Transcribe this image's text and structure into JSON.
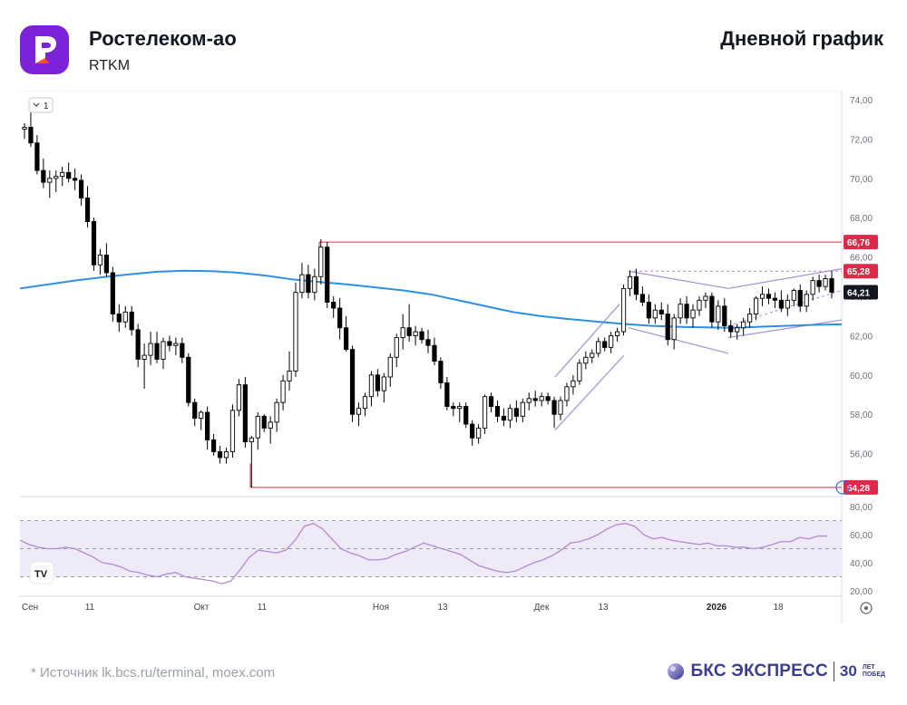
{
  "header": {
    "name": "Ростелеком-ао",
    "code": "RTKM",
    "timeframe": "Дневной график"
  },
  "footer": {
    "source": "*  Источник lk.bcs.ru/terminal, moex.com",
    "brand": "БКС ЭКСПРЕСС",
    "brand_30": "30",
    "brand_small_1": "ЛЕТ",
    "brand_small_2": "ПОБЕД"
  },
  "colors": {
    "up_candle": "#ffffff",
    "down_candle": "#000000",
    "ma_line": "#2f8fe5",
    "level_line": "#e0284a",
    "channel": "#a48ed6",
    "rsi_line": "#b38ad6",
    "rsi_band": "#efeaf8",
    "brand": "#3b3e8c"
  },
  "chart_data": {
    "type": "candlestick",
    "scale_note": "1",
    "y_axis": {
      "min": 52,
      "max": 75,
      "ticks": [
        "74,00",
        "72,00",
        "70,00",
        "68,00",
        "66,00",
        "64,00",
        "62,00",
        "60,00",
        "58,00",
        "56,00"
      ]
    },
    "x_labels": [
      "Сен",
      "11",
      "Окт",
      "11",
      "Ноя",
      "13",
      "Дек",
      "13",
      "2026",
      "18"
    ],
    "price_labels": [
      {
        "value": 66.76,
        "text": "66,76",
        "style": "red"
      },
      {
        "value": 65.28,
        "text": "65,28",
        "style": "red"
      },
      {
        "value": 64.21,
        "text": "64,21",
        "style": "black"
      },
      {
        "value": 54.28,
        "text": "54,28",
        "style": "red"
      }
    ],
    "horizontal_levels": [
      66.76,
      54.28
    ],
    "ohlc": [
      [
        72.5,
        72.8,
        72.0,
        72.6
      ],
      [
        72.6,
        73.4,
        71.6,
        71.8
      ],
      [
        71.8,
        72.2,
        70.2,
        70.4
      ],
      [
        70.4,
        71.0,
        69.5,
        69.8
      ],
      [
        69.8,
        70.4,
        69.0,
        70.0
      ],
      [
        70.0,
        70.4,
        69.3,
        70.1
      ],
      [
        70.1,
        70.6,
        69.6,
        70.3
      ],
      [
        70.3,
        70.8,
        69.8,
        70.0
      ],
      [
        70.0,
        70.5,
        69.4,
        69.9
      ],
      [
        69.9,
        70.2,
        68.6,
        69.0
      ],
      [
        69.0,
        69.6,
        67.5,
        67.8
      ],
      [
        67.8,
        68.0,
        65.3,
        65.6
      ],
      [
        65.6,
        66.4,
        65.1,
        66.1
      ],
      [
        66.1,
        66.7,
        65.0,
        65.2
      ],
      [
        65.2,
        65.5,
        62.7,
        63.1
      ],
      [
        63.1,
        63.6,
        62.2,
        62.7
      ],
      [
        62.7,
        63.5,
        62.4,
        63.2
      ],
      [
        63.2,
        63.5,
        62.0,
        62.3
      ],
      [
        62.3,
        62.6,
        60.4,
        60.8
      ],
      [
        60.8,
        61.6,
        59.3,
        61.0
      ],
      [
        61.0,
        62.2,
        60.5,
        61.6
      ],
      [
        61.6,
        62.2,
        60.6,
        60.8
      ],
      [
        60.8,
        61.9,
        60.3,
        61.7
      ],
      [
        61.7,
        62.0,
        61.2,
        61.5
      ],
      [
        61.5,
        61.9,
        61.0,
        61.6
      ],
      [
        61.6,
        61.9,
        60.6,
        60.9
      ],
      [
        60.9,
        61.1,
        58.4,
        58.6
      ],
      [
        58.6,
        58.8,
        57.4,
        57.8
      ],
      [
        57.8,
        58.2,
        57.2,
        58.1
      ],
      [
        58.1,
        58.4,
        56.2,
        56.7
      ],
      [
        56.7,
        57.0,
        55.9,
        56.1
      ],
      [
        56.1,
        56.4,
        55.5,
        55.8
      ],
      [
        55.8,
        56.3,
        55.5,
        56.1
      ],
      [
        56.1,
        58.5,
        55.8,
        58.2
      ],
      [
        58.2,
        59.8,
        57.9,
        59.5
      ],
      [
        59.5,
        59.9,
        56.3,
        56.6
      ],
      [
        56.6,
        56.9,
        54.28,
        56.8
      ],
      [
        56.8,
        58.1,
        56.2,
        57.9
      ],
      [
        57.9,
        58.0,
        57.1,
        57.3
      ],
      [
        57.3,
        57.9,
        56.5,
        57.6
      ],
      [
        57.6,
        58.8,
        57.1,
        58.6
      ],
      [
        58.6,
        60.0,
        58.2,
        59.7
      ],
      [
        59.7,
        61.2,
        59.2,
        60.2
      ],
      [
        60.2,
        64.7,
        59.9,
        64.2
      ],
      [
        64.2,
        65.7,
        63.9,
        65.1
      ],
      [
        65.1,
        65.6,
        63.9,
        64.2
      ],
      [
        64.2,
        65.4,
        63.8,
        65.0
      ],
      [
        65.0,
        66.9,
        64.6,
        66.5
      ],
      [
        66.5,
        66.76,
        63.4,
        63.7
      ],
      [
        63.7,
        64.0,
        62.9,
        63.4
      ],
      [
        63.4,
        63.9,
        61.8,
        62.4
      ],
      [
        62.4,
        63.0,
        61.2,
        61.3
      ],
      [
        61.3,
        61.5,
        57.6,
        58.0
      ],
      [
        58.0,
        58.6,
        57.4,
        58.3
      ],
      [
        58.3,
        59.1,
        57.9,
        58.9
      ],
      [
        58.9,
        60.2,
        58.4,
        60.0
      ],
      [
        60.0,
        60.3,
        58.9,
        59.2
      ],
      [
        59.2,
        60.1,
        58.6,
        59.9
      ],
      [
        59.9,
        61.1,
        59.4,
        60.9
      ],
      [
        60.9,
        62.1,
        60.4,
        61.9
      ],
      [
        61.9,
        63.1,
        61.3,
        62.4
      ],
      [
        62.4,
        63.6,
        61.7,
        62.0
      ],
      [
        62.0,
        62.5,
        61.5,
        62.2
      ],
      [
        62.2,
        62.4,
        61.6,
        61.8
      ],
      [
        61.8,
        62.3,
        61.1,
        61.5
      ],
      [
        61.5,
        61.9,
        60.5,
        60.7
      ],
      [
        60.7,
        60.9,
        59.3,
        59.6
      ],
      [
        59.6,
        59.9,
        58.2,
        58.4
      ],
      [
        58.4,
        58.6,
        57.9,
        58.3
      ],
      [
        58.3,
        58.6,
        57.6,
        58.4
      ],
      [
        58.4,
        58.6,
        57.3,
        57.5
      ],
      [
        57.5,
        57.7,
        56.4,
        56.8
      ],
      [
        56.8,
        57.5,
        56.5,
        57.3
      ],
      [
        57.3,
        59.0,
        57.0,
        58.9
      ],
      [
        58.9,
        59.1,
        58.1,
        58.4
      ],
      [
        58.4,
        58.7,
        57.6,
        57.9
      ],
      [
        57.9,
        58.3,
        57.4,
        57.7
      ],
      [
        57.7,
        58.5,
        57.3,
        58.3
      ],
      [
        58.3,
        58.7,
        57.6,
        57.9
      ],
      [
        57.9,
        58.8,
        57.6,
        58.6
      ],
      [
        58.6,
        59.1,
        58.2,
        58.8
      ],
      [
        58.8,
        59.2,
        58.4,
        58.7
      ],
      [
        58.7,
        59.1,
        58.4,
        58.9
      ],
      [
        58.9,
        59.1,
        58.5,
        58.7
      ],
      [
        58.7,
        58.9,
        57.3,
        58.0
      ],
      [
        58.0,
        58.9,
        57.7,
        58.7
      ],
      [
        58.7,
        59.6,
        58.4,
        59.4
      ],
      [
        59.4,
        60.0,
        59.0,
        59.7
      ],
      [
        59.7,
        60.8,
        59.5,
        60.6
      ],
      [
        60.6,
        61.2,
        60.3,
        60.9
      ],
      [
        60.9,
        61.3,
        60.6,
        61.1
      ],
      [
        61.1,
        61.9,
        60.9,
        61.7
      ],
      [
        61.7,
        61.9,
        61.2,
        61.4
      ],
      [
        61.4,
        62.2,
        61.1,
        62.0
      ],
      [
        62.0,
        62.4,
        61.7,
        62.2
      ],
      [
        62.2,
        64.6,
        62.0,
        64.4
      ],
      [
        64.4,
        65.3,
        64.0,
        65.0
      ],
      [
        65.0,
        65.4,
        63.8,
        64.1
      ],
      [
        64.1,
        64.5,
        63.5,
        63.7
      ],
      [
        63.7,
        64.1,
        62.6,
        62.9
      ],
      [
        62.9,
        63.6,
        62.6,
        63.3
      ],
      [
        63.3,
        63.7,
        62.8,
        63.1
      ],
      [
        63.1,
        63.6,
        61.5,
        61.8
      ],
      [
        61.8,
        63.1,
        61.3,
        62.9
      ],
      [
        62.9,
        63.9,
        62.6,
        63.6
      ],
      [
        63.6,
        64.0,
        62.6,
        62.9
      ],
      [
        62.9,
        63.6,
        62.4,
        63.3
      ],
      [
        63.3,
        64.0,
        63.0,
        63.8
      ],
      [
        63.8,
        64.2,
        63.4,
        64.0
      ],
      [
        64.0,
        64.2,
        62.4,
        62.7
      ],
      [
        62.7,
        63.8,
        62.3,
        63.5
      ],
      [
        63.5,
        63.9,
        62.2,
        62.5
      ],
      [
        62.5,
        62.8,
        61.9,
        62.2
      ],
      [
        62.2,
        62.6,
        61.8,
        62.4
      ],
      [
        62.4,
        62.9,
        62.0,
        62.7
      ],
      [
        62.7,
        63.4,
        62.4,
        63.1
      ],
      [
        63.1,
        64.0,
        62.8,
        63.9
      ],
      [
        63.9,
        64.5,
        63.5,
        64.1
      ],
      [
        64.1,
        64.4,
        63.6,
        63.9
      ],
      [
        63.9,
        64.2,
        63.4,
        63.8
      ],
      [
        63.8,
        64.3,
        63.2,
        63.4
      ],
      [
        63.4,
        64.1,
        63.0,
        63.8
      ],
      [
        63.8,
        64.4,
        63.5,
        64.3
      ],
      [
        64.3,
        64.6,
        63.2,
        63.5
      ],
      [
        63.5,
        64.3,
        63.2,
        64.1
      ],
      [
        64.1,
        65.0,
        63.8,
        64.8
      ],
      [
        64.8,
        65.1,
        64.2,
        64.5
      ],
      [
        64.5,
        65.1,
        64.3,
        64.9
      ],
      [
        64.9,
        65.28,
        63.9,
        64.21
      ]
    ],
    "ma": [
      64.4,
      64.6,
      64.8,
      64.97,
      65.12,
      65.25,
      65.3,
      65.28,
      65.2,
      65.05,
      64.85,
      64.72,
      64.6,
      64.45,
      64.3,
      64.1,
      63.8,
      63.5,
      63.2,
      63.0,
      62.85,
      62.72,
      62.6,
      62.5,
      62.45,
      62.42,
      62.4,
      62.45,
      62.5,
      62.55,
      62.58
    ],
    "rsi": {
      "range": [
        20,
        80
      ],
      "ticks": [
        "80,00",
        "60,00",
        "40,00",
        "20,00"
      ],
      "band": [
        30,
        70
      ],
      "mid": 50,
      "values": [
        56,
        53,
        51,
        50,
        50,
        51,
        50,
        47,
        44,
        40,
        39,
        37,
        34,
        33,
        31,
        30,
        32,
        33,
        30,
        29,
        28,
        27,
        25,
        27,
        35,
        44,
        49,
        48,
        47,
        49,
        56,
        66,
        68,
        64,
        57,
        50,
        47,
        45,
        42,
        42,
        43,
        46,
        48,
        51,
        54,
        52,
        50,
        48,
        46,
        42,
        38,
        36,
        34,
        33,
        34,
        37,
        40,
        42,
        45,
        49,
        54,
        55,
        57,
        60,
        64,
        67,
        68,
        66,
        60,
        57,
        58,
        56,
        55,
        54,
        53,
        54,
        52,
        52,
        51,
        51,
        50,
        51,
        53,
        55,
        55,
        58,
        57,
        59,
        59
      ]
    }
  }
}
